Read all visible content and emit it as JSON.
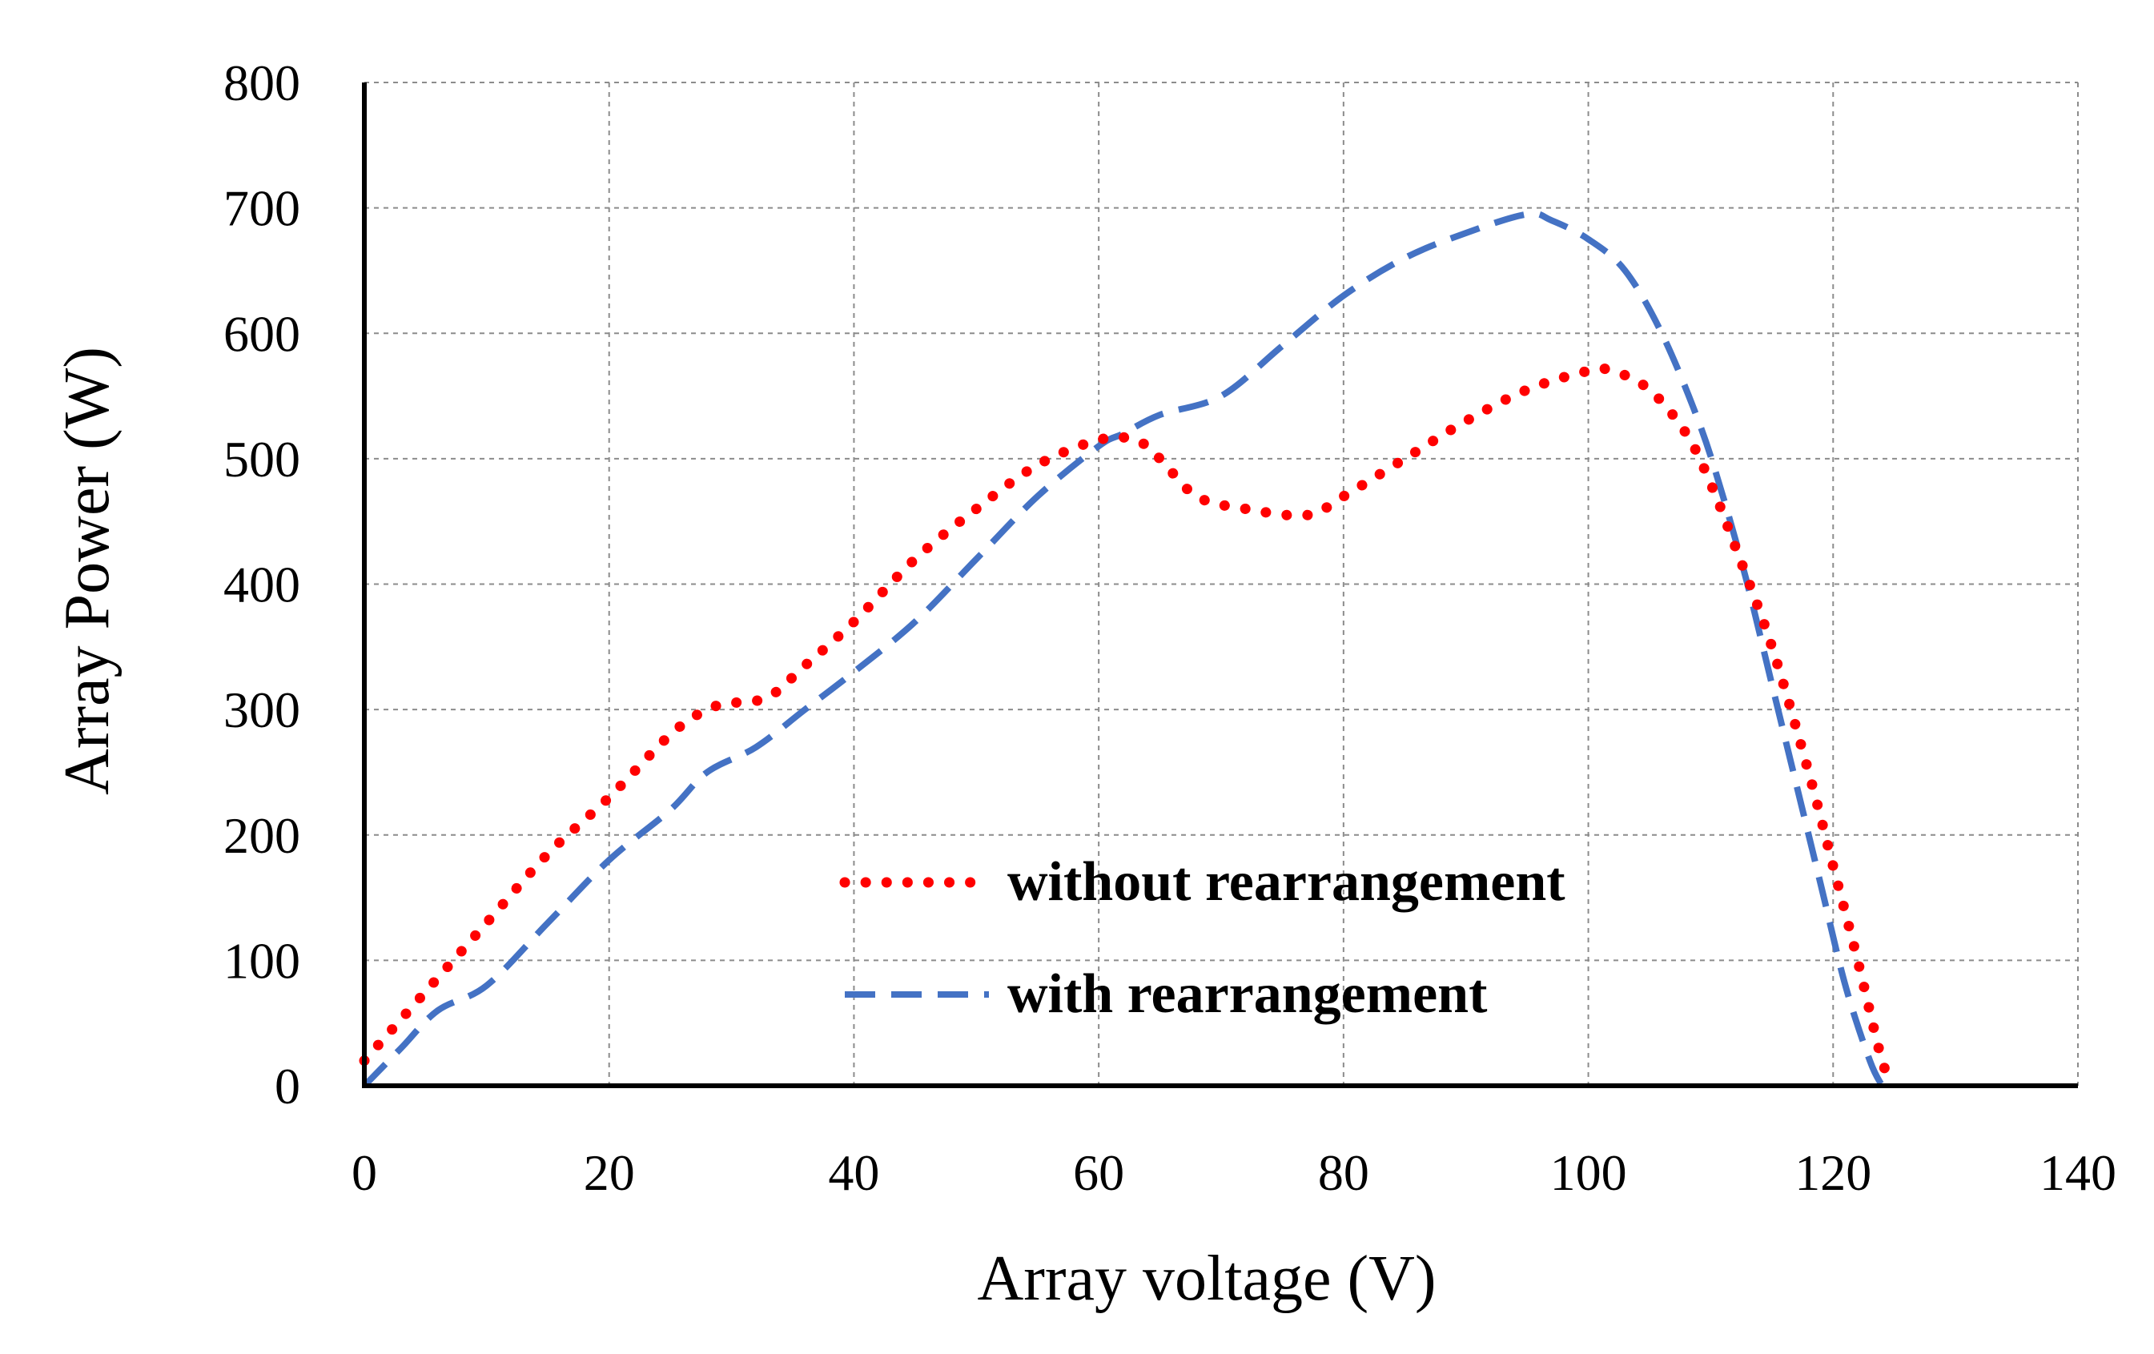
{
  "chart_data": {
    "type": "line",
    "title": "",
    "xlabel": "Array voltage (V)",
    "ylabel": "Array Power (W)",
    "xlim": [
      0,
      140
    ],
    "ylim": [
      0,
      800
    ],
    "xticks": [
      0,
      20,
      40,
      60,
      80,
      100,
      120,
      140
    ],
    "yticks": [
      0,
      100,
      200,
      300,
      400,
      500,
      600,
      700,
      800
    ],
    "xtick_labels": [
      "0",
      "20",
      "40",
      "60",
      "80",
      "100",
      "120",
      "140"
    ],
    "ytick_labels": [
      "0",
      "100",
      "200",
      "300",
      "400",
      "500",
      "600",
      "700",
      "800"
    ],
    "grid": true,
    "legend_position": "center-right",
    "series": [
      {
        "name": "without rearrangement",
        "color": "#ff0000",
        "style": "dotted",
        "x": [
          0,
          5,
          10,
          15,
          20,
          25,
          28,
          30,
          33,
          36,
          40,
          45,
          50,
          55,
          60,
          63,
          65,
          68,
          72,
          77,
          80,
          85,
          90,
          95,
          100,
          102,
          105,
          108,
          110,
          112,
          115,
          118,
          120,
          122,
          124,
          125
        ],
        "y": [
          20,
          75,
          130,
          185,
          230,
          280,
          300,
          305,
          310,
          335,
          370,
          420,
          460,
          495,
          515,
          515,
          500,
          470,
          460,
          455,
          470,
          500,
          530,
          555,
          570,
          570,
          555,
          520,
          480,
          430,
          350,
          250,
          175,
          100,
          20,
          0
        ]
      },
      {
        "name": "with rearrangement",
        "color": "#4472c4",
        "style": "dashed",
        "x": [
          0,
          3,
          6,
          10,
          15,
          20,
          25,
          28,
          32,
          36,
          40,
          45,
          50,
          55,
          60,
          62,
          65,
          70,
          75,
          80,
          85,
          90,
          95,
          97,
          100,
          103,
          106,
          109,
          111,
          113,
          115,
          117,
          119,
          121,
          123,
          124
        ],
        "y": [
          0,
          30,
          60,
          80,
          130,
          180,
          220,
          250,
          270,
          300,
          330,
          370,
          420,
          470,
          510,
          520,
          535,
          550,
          590,
          630,
          660,
          680,
          695,
          690,
          675,
          650,
          600,
          530,
          470,
          400,
          320,
          240,
          160,
          80,
          20,
          0
        ]
      }
    ]
  }
}
